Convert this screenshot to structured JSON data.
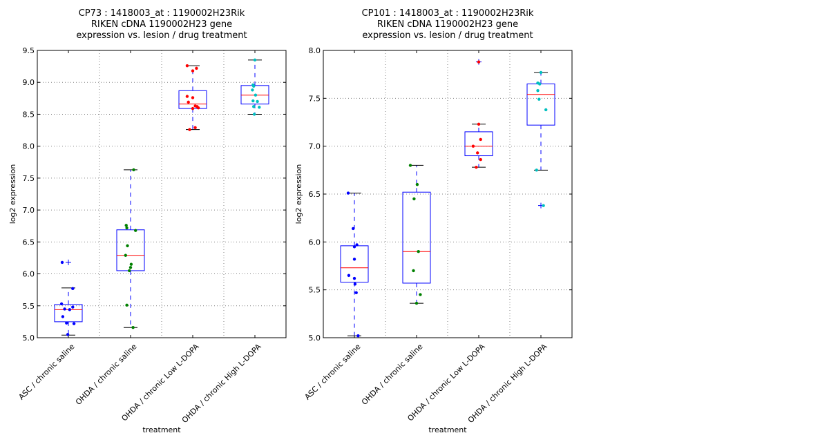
{
  "chart_data": [
    {
      "type": "box",
      "title": [
        "CP73 : 1418003_at : 1190002H23Rik",
        "RIKEN cDNA 1190002H23 gene",
        "expression vs. lesion / drug treatment"
      ],
      "xlabel": "treatment",
      "ylabel": "log2 expression",
      "ylim": [
        5.0,
        9.5
      ],
      "yticks": [
        "5.0",
        "5.5",
        "6.0",
        "6.5",
        "7.0",
        "7.5",
        "8.0",
        "8.5",
        "9.0",
        "9.5"
      ],
      "grid": true,
      "categories": [
        "ASC / chronic saline",
        "OHDA / chronic saline",
        "OHDA / chronic Low L-DOPA",
        "OHDA / chronic High L-DOPA"
      ],
      "boxes": [
        {
          "whislo": 5.04,
          "q1": 5.25,
          "med": 5.44,
          "q3": 5.52,
          "whishi": 5.78,
          "fliers": [
            6.18
          ]
        },
        {
          "whislo": 5.16,
          "q1": 6.05,
          "med": 6.29,
          "q3": 6.69,
          "whishi": 7.63,
          "fliers": []
        },
        {
          "whislo": 8.26,
          "q1": 8.59,
          "med": 8.66,
          "q3": 8.87,
          "whishi": 9.26,
          "fliers": []
        },
        {
          "whislo": 8.5,
          "q1": 8.66,
          "med": 8.8,
          "q3": 8.95,
          "whishi": 9.35,
          "fliers": []
        }
      ],
      "points": [
        {
          "color": "#0000ff",
          "values": [
            6.18,
            5.77,
            5.53,
            5.48,
            5.45,
            5.44,
            5.33,
            5.23,
            5.22,
            5.05
          ],
          "jitter": [
            -0.1,
            0.07,
            -0.11,
            0.07,
            -0.06,
            0.02,
            -0.09,
            -0.03,
            0.09,
            -0.01
          ]
        },
        {
          "color": "#008000",
          "values": [
            7.63,
            6.76,
            6.72,
            6.68,
            6.44,
            6.29,
            6.15,
            6.1,
            6.05,
            5.51,
            5.16
          ],
          "jitter": [
            0.05,
            -0.07,
            -0.06,
            0.08,
            -0.05,
            -0.08,
            0.01,
            0.0,
            -0.02,
            -0.06,
            0.04
          ]
        },
        {
          "color": "#ff0000",
          "values": [
            9.26,
            9.22,
            9.18,
            8.78,
            8.76,
            8.69,
            8.63,
            8.62,
            8.6,
            8.59,
            8.29,
            8.26
          ],
          "jitter": [
            -0.09,
            0.06,
            0.0,
            -0.09,
            0.0,
            -0.07,
            0.04,
            0.07,
            0.09,
            0.0,
            0.04,
            -0.05
          ]
        },
        {
          "color": "#00bfbf",
          "values": [
            9.35,
            8.96,
            8.94,
            8.88,
            8.8,
            8.71,
            8.7,
            8.62,
            8.61,
            8.5
          ],
          "jitter": [
            0.0,
            -0.03,
            -0.02,
            -0.04,
            0.01,
            -0.03,
            0.04,
            -0.02,
            0.07,
            -0.01
          ]
        }
      ]
    },
    {
      "type": "box",
      "title": [
        "CP101 : 1418003_at : 1190002H23Rik",
        "RIKEN cDNA 1190002H23 gene",
        "expression vs. lesion / drug treatment"
      ],
      "xlabel": "treatment",
      "ylabel": "log2 expression",
      "ylim": [
        5.0,
        8.0
      ],
      "yticks": [
        "5.0",
        "5.5",
        "6.0",
        "6.5",
        "7.0",
        "7.5",
        "8.0"
      ],
      "grid": true,
      "categories": [
        "ASC / chronic saline",
        "OHDA / chronic saline",
        "OHDA / chronic Low L-DOPA",
        "OHDA / chronic High L-DOPA"
      ],
      "boxes": [
        {
          "whislo": 5.02,
          "q1": 5.58,
          "med": 5.73,
          "q3": 5.96,
          "whishi": 6.51,
          "fliers": []
        },
        {
          "whislo": 5.36,
          "q1": 5.57,
          "med": 5.9,
          "q3": 6.52,
          "whishi": 6.8,
          "fliers": []
        },
        {
          "whislo": 6.78,
          "q1": 6.9,
          "med": 7.0,
          "q3": 7.15,
          "whishi": 7.23,
          "fliers": [
            7.88
          ]
        },
        {
          "whislo": 6.75,
          "q1": 7.22,
          "med": 7.54,
          "q3": 7.65,
          "whishi": 7.77,
          "fliers": [
            6.38
          ]
        }
      ],
      "points": [
        {
          "color": "#0000ff",
          "values": [
            6.51,
            6.14,
            5.97,
            5.95,
            5.82,
            5.65,
            5.62,
            5.56,
            5.47,
            5.02
          ],
          "jitter": [
            -0.1,
            -0.02,
            0.04,
            0.0,
            0.0,
            -0.09,
            0.0,
            0.01,
            0.03,
            0.06
          ]
        },
        {
          "color": "#008000",
          "values": [
            6.8,
            6.6,
            6.45,
            5.9,
            5.7,
            5.45,
            5.36
          ],
          "jitter": [
            -0.1,
            0.01,
            -0.04,
            0.03,
            -0.05,
            0.06,
            0.0
          ]
        },
        {
          "color": "#ff0000",
          "values": [
            7.88,
            7.23,
            7.07,
            7.0,
            6.93,
            6.86,
            6.78
          ],
          "jitter": [
            0.0,
            0.0,
            0.03,
            -0.09,
            -0.02,
            0.03,
            -0.04
          ]
        },
        {
          "color": "#00bfbf",
          "values": [
            7.77,
            7.66,
            7.65,
            7.58,
            7.49,
            7.38,
            6.75,
            6.38
          ],
          "jitter": [
            0.0,
            -0.05,
            -0.02,
            -0.05,
            -0.03,
            0.08,
            -0.07,
            0.04
          ]
        }
      ]
    }
  ]
}
